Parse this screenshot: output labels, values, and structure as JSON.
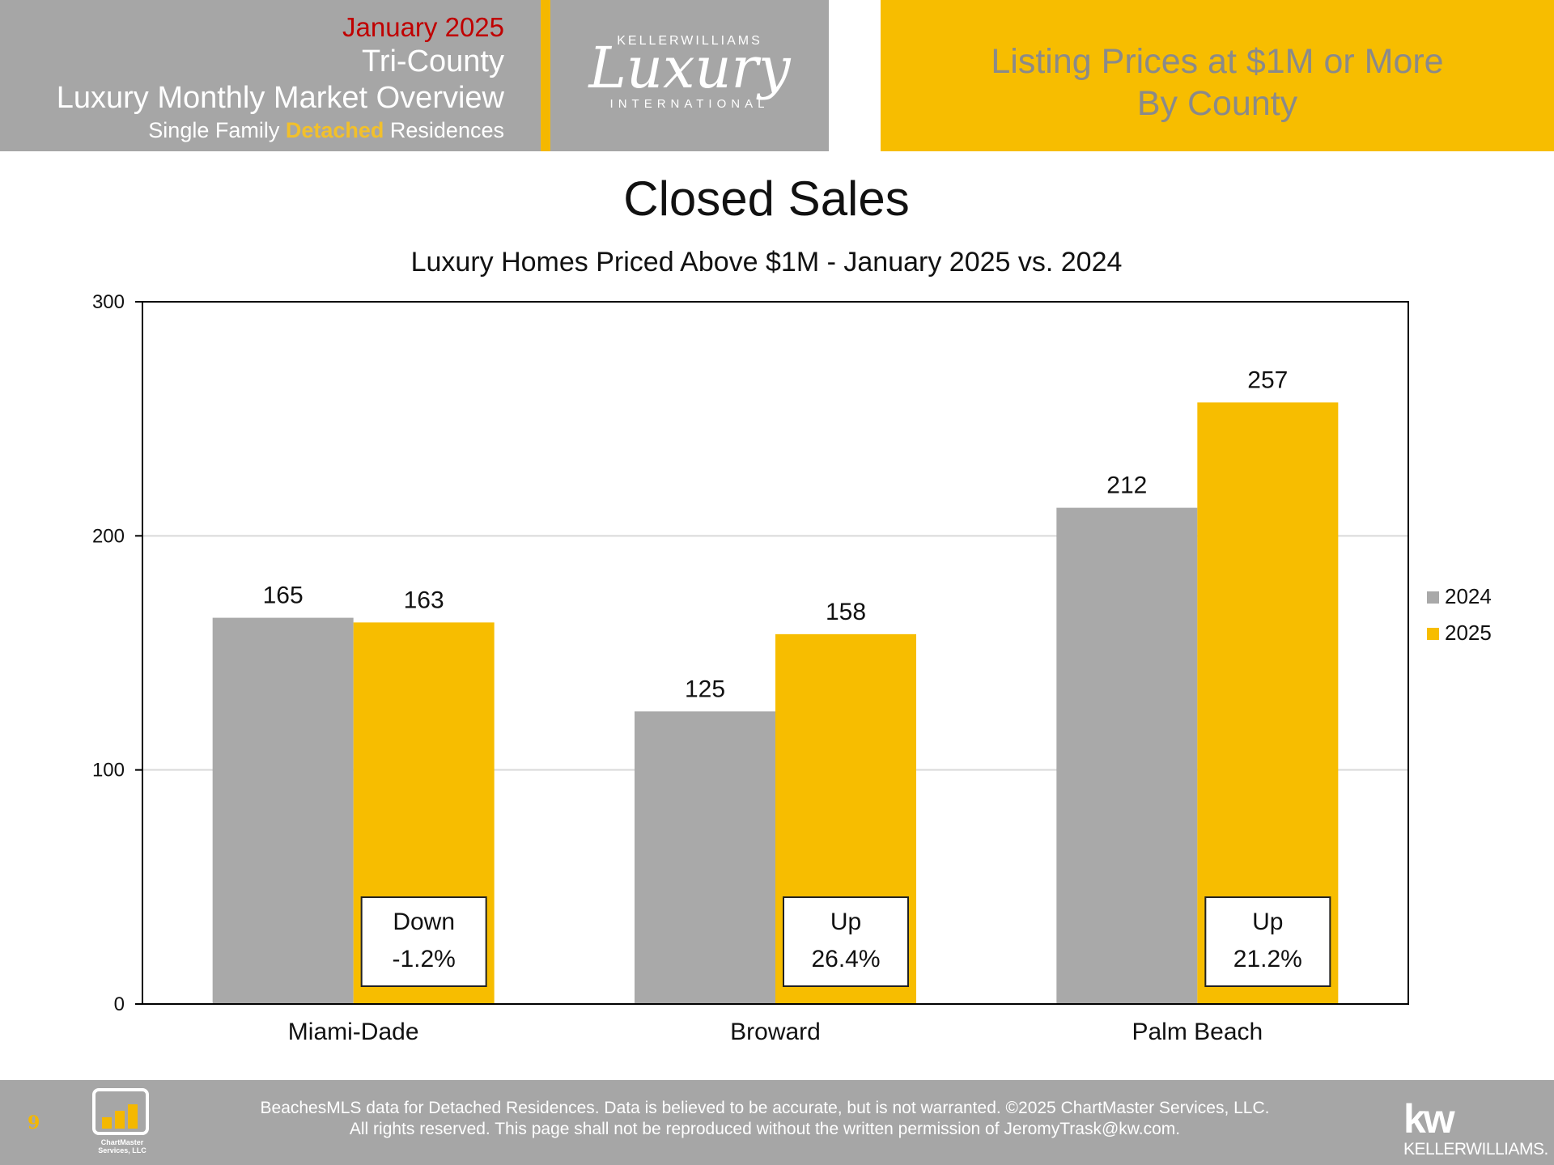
{
  "header": {
    "date": "January 2025",
    "region": "Tri-County",
    "report_title": "Luxury Monthly Market Overview",
    "subtitle_pre": "Single Family ",
    "subtitle_highlight": "Detached",
    "subtitle_post": " Residences",
    "logo_top": "KELLERWILLIAMS",
    "logo_script": "Luxury",
    "logo_bottom": "INTERNATIONAL",
    "right_line1": "Listing Prices at $1M or More",
    "right_line2": "By County"
  },
  "colors": {
    "series_2024": "#a9a9a9",
    "series_2025": "#f7bd00",
    "gridline": "#d9d9d9"
  },
  "chart_data": {
    "type": "bar",
    "title": "Closed Sales",
    "subtitle": "Luxury Homes Priced Above $1M - January 2025 vs. 2024",
    "xlabel": "",
    "ylabel": "",
    "categories": [
      "Miami-Dade",
      "Broward",
      "Palm Beach"
    ],
    "series": [
      {
        "name": "2024",
        "values": [
          165,
          125,
          212
        ]
      },
      {
        "name": "2025",
        "values": [
          163,
          158,
          257
        ]
      }
    ],
    "ylim": [
      0,
      300
    ],
    "yticks": [
      0,
      100,
      200,
      300
    ],
    "grid": true,
    "legend": "right",
    "annotations": [
      {
        "line1": "Down",
        "line2": "-1.2%"
      },
      {
        "line1": "Up",
        "line2": "26.4%"
      },
      {
        "line1": "Up",
        "line2": "21.2%"
      }
    ]
  },
  "footer": {
    "page_number": "9",
    "cm_logo_text": "ChartMaster Services, LLC",
    "line1": "BeachesMLS data for Detached Residences.  Data is believed to be accurate, but is not warranted.   ©2025  ChartMaster Services, LLC.",
    "line2": "All rights reserved. This page shall not be reproduced without the written permission of JeromyTrask@kw.com.",
    "kw_mark": "kw",
    "kw_name": "KELLERWILLIAMS."
  }
}
